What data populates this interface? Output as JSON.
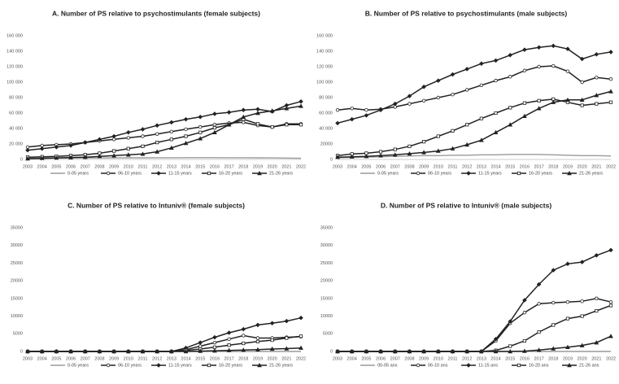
{
  "chart_data": [
    {
      "type": "line",
      "title": "A. Number of PS relative to psychostimulants (female subjects)",
      "categories": [
        "2003",
        "2004",
        "2005",
        "2006",
        "2007",
        "2008",
        "2009",
        "2010",
        "2011",
        "2012",
        "2013",
        "2014",
        "2015",
        "2016",
        "2017",
        "2018",
        "2019",
        "2020",
        "2021",
        "2022"
      ],
      "ylim": [
        0,
        160000
      ],
      "yticks": [
        0,
        {
          "value": 20000,
          "label": "20 000"
        },
        {
          "value": 40000,
          "label": "40 000"
        },
        {
          "value": 60000,
          "label": "60 000"
        },
        {
          "value": 80000,
          "label": "80 000"
        },
        {
          "value": 100000,
          "label": "100 000"
        },
        {
          "value": 120000,
          "label": "120 000"
        },
        {
          "value": 140000,
          "label": "140 000"
        },
        {
          "value": 160000,
          "label": "160 000"
        }
      ],
      "series": [
        {
          "name": "0-05 years",
          "color": "#9a9a9a",
          "marker": "none",
          "values": [
            1500,
            1600,
            1700,
            1800,
            1900,
            2000,
            2000,
            2100,
            2100,
            2200,
            2200,
            2300,
            2300,
            2300,
            2200,
            2200,
            2100,
            2000,
            1800,
            1500
          ]
        },
        {
          "name": "06-10 years",
          "color": "#222222",
          "marker": "circle-open",
          "values": [
            16000,
            18000,
            19000,
            20000,
            22000,
            24000,
            26000,
            28000,
            30000,
            33000,
            36000,
            39000,
            42000,
            45000,
            47000,
            48000,
            44000,
            42000,
            46000,
            46000
          ]
        },
        {
          "name": "11-15 years",
          "color": "#222222",
          "marker": "diamond",
          "values": [
            12000,
            14000,
            16000,
            18000,
            22000,
            26000,
            30000,
            35000,
            39000,
            44000,
            48000,
            52000,
            55000,
            59000,
            61000,
            64000,
            65000,
            62000,
            70000,
            75000
          ]
        },
        {
          "name": "16-20 years",
          "color": "#222222",
          "marker": "square-open",
          "values": [
            3000,
            3500,
            4000,
            5000,
            6000,
            8000,
            11000,
            14000,
            17000,
            22000,
            26000,
            30000,
            35000,
            41000,
            45000,
            52000,
            46000,
            42000,
            45000,
            45000
          ]
        },
        {
          "name": "21-26 years",
          "color": "#222222",
          "marker": "triangle",
          "values": [
            1000,
            1500,
            2000,
            2500,
            3000,
            4000,
            5000,
            6000,
            7000,
            10000,
            15000,
            21000,
            27000,
            35000,
            45000,
            55000,
            60000,
            63000,
            66000,
            69000
          ]
        }
      ]
    },
    {
      "type": "line",
      "title": "B. Number of PS relative to psychostimulants (male subjects)",
      "categories": [
        "2003",
        "2004",
        "2005",
        "2006",
        "2007",
        "2008",
        "2009",
        "2010",
        "2011",
        "2012",
        "2013",
        "2014",
        "2015",
        "2016",
        "2017",
        "2018",
        "2019",
        "2020",
        "2021",
        "2022"
      ],
      "ylim": [
        0,
        160000
      ],
      "yticks": [
        0,
        {
          "value": 20000,
          "label": "20000"
        },
        {
          "value": 40000,
          "label": "40 000"
        },
        {
          "value": 60000,
          "label": "60 000"
        },
        {
          "value": 80000,
          "label": "80 000"
        },
        {
          "value": 100000,
          "label": "100 000"
        },
        {
          "value": 120000,
          "label": "120 000"
        },
        {
          "value": 140000,
          "label": "140 000"
        },
        {
          "value": 160000,
          "label": "160 000"
        }
      ],
      "series": [
        {
          "name": "0-05 years",
          "color": "#9a9a9a",
          "marker": "none",
          "values": [
            2000,
            2500,
            3000,
            3500,
            4000,
            4500,
            5000,
            5000,
            5500,
            5500,
            6000,
            6000,
            6500,
            6500,
            6500,
            6000,
            5500,
            5000,
            5000,
            4500
          ]
        },
        {
          "name": "06-10 years",
          "color": "#222222",
          "marker": "circle-open",
          "values": [
            64000,
            66000,
            64000,
            65000,
            68000,
            72000,
            76000,
            80000,
            84000,
            90000,
            96000,
            102000,
            107000,
            115000,
            120000,
            121000,
            114000,
            100000,
            106000,
            104000
          ]
        },
        {
          "name": "11-15 years",
          "color": "#222222",
          "marker": "diamond",
          "values": [
            47000,
            52000,
            57000,
            64000,
            72000,
            82000,
            94000,
            102000,
            110000,
            117000,
            124000,
            128000,
            135000,
            142000,
            145000,
            147000,
            143000,
            130000,
            136000,
            139000
          ]
        },
        {
          "name": "16-20 years",
          "color": "#222222",
          "marker": "square-open",
          "values": [
            5000,
            7000,
            8000,
            10000,
            13000,
            17000,
            23000,
            30000,
            37000,
            45000,
            53000,
            60000,
            67000,
            73000,
            76000,
            78000,
            74000,
            70000,
            72000,
            74000
          ]
        },
        {
          "name": "21-26 years",
          "color": "#222222",
          "marker": "triangle",
          "values": [
            3000,
            3500,
            4000,
            5000,
            6000,
            7500,
            9000,
            11000,
            14000,
            19000,
            25000,
            35000,
            45000,
            56000,
            66000,
            74000,
            77000,
            77000,
            83000,
            88000
          ]
        }
      ]
    },
    {
      "type": "line",
      "title": "C. Number of PS relative to Intuniv® (female subjects)",
      "categories": [
        "2003",
        "2004",
        "2005",
        "2006",
        "2007",
        "2008",
        "2009",
        "2010",
        "2011",
        "2012",
        "2013",
        "2014",
        "2015",
        "2016",
        "2017",
        "2018",
        "2019",
        "2020",
        "2021",
        "2022"
      ],
      "ylim": [
        0,
        35000
      ],
      "yticks": [
        0,
        5000,
        10000,
        15000,
        20000,
        25000,
        30000,
        35000
      ],
      "series": [
        {
          "name": "0-05 years",
          "color": "#9a9a9a",
          "marker": "none",
          "values": [
            0,
            0,
            0,
            0,
            0,
            0,
            0,
            0,
            0,
            0,
            0,
            0,
            0,
            0,
            0,
            0,
            0,
            0,
            0,
            0
          ]
        },
        {
          "name": "06-10 years",
          "color": "#222222",
          "marker": "circle-open",
          "values": [
            0,
            0,
            0,
            0,
            0,
            0,
            0,
            0,
            0,
            0,
            0,
            500,
            1500,
            2500,
            3500,
            4500,
            3800,
            3800,
            4000,
            4200
          ]
        },
        {
          "name": "11-15 years",
          "color": "#222222",
          "marker": "diamond",
          "values": [
            0,
            0,
            0,
            0,
            0,
            0,
            0,
            0,
            0,
            0,
            0,
            1000,
            2500,
            4000,
            5300,
            6300,
            7500,
            8000,
            8600,
            9500
          ]
        },
        {
          "name": "16-20 years",
          "color": "#222222",
          "marker": "square-open",
          "values": [
            0,
            0,
            0,
            0,
            0,
            0,
            0,
            0,
            0,
            0,
            0,
            300,
            700,
            1200,
            1800,
            2300,
            2800,
            3200,
            3800,
            4300
          ]
        },
        {
          "name": "21-26 years",
          "color": "#222222",
          "marker": "triangle",
          "values": [
            0,
            0,
            0,
            0,
            0,
            0,
            0,
            0,
            0,
            0,
            0,
            0,
            100,
            200,
            300,
            400,
            500,
            700,
            800,
            1000
          ]
        }
      ]
    },
    {
      "type": "line",
      "title": "D. Number of PS relative to Intuniv® (male subjects)",
      "categories": [
        "2003",
        "2004",
        "2005",
        "2006",
        "2007",
        "2008",
        "2009",
        "2010",
        "2011",
        "2012",
        "2013",
        "2014",
        "2015",
        "2016",
        "2017",
        "2018",
        "2019",
        "2020",
        "2021",
        "2022"
      ],
      "ylim": [
        0,
        35000
      ],
      "yticks": [
        0,
        5000,
        10000,
        15000,
        20000,
        25000,
        30000,
        35000
      ],
      "series": [
        {
          "name": "00-05 ans",
          "color": "#9a9a9a",
          "marker": "none",
          "values": [
            0,
            0,
            0,
            0,
            0,
            0,
            0,
            0,
            0,
            0,
            0,
            0,
            0,
            0,
            0,
            0,
            0,
            0,
            0,
            0
          ]
        },
        {
          "name": "06-10 ans",
          "color": "#222222",
          "marker": "circle-open",
          "values": [
            0,
            0,
            0,
            0,
            0,
            0,
            0,
            0,
            0,
            0,
            0,
            3000,
            8000,
            11000,
            13500,
            13800,
            14000,
            14200,
            15000,
            14000
          ]
        },
        {
          "name": "11-15 ans",
          "color": "#222222",
          "marker": "diamond",
          "values": [
            0,
            0,
            0,
            0,
            0,
            0,
            0,
            0,
            0,
            0,
            0,
            3500,
            8500,
            14500,
            19000,
            23000,
            24800,
            25300,
            27200,
            28700
          ]
        },
        {
          "name": "16-20 ans",
          "color": "#222222",
          "marker": "square-open",
          "values": [
            0,
            0,
            0,
            0,
            0,
            0,
            0,
            0,
            0,
            0,
            0,
            300,
            1500,
            3000,
            5500,
            7500,
            9300,
            10000,
            11500,
            13000
          ]
        },
        {
          "name": "21-26 ans",
          "color": "#222222",
          "marker": "triangle",
          "values": [
            0,
            0,
            0,
            0,
            0,
            0,
            0,
            0,
            0,
            0,
            0,
            0,
            0,
            100,
            400,
            800,
            1200,
            1700,
            2500,
            4300
          ]
        }
      ]
    }
  ]
}
